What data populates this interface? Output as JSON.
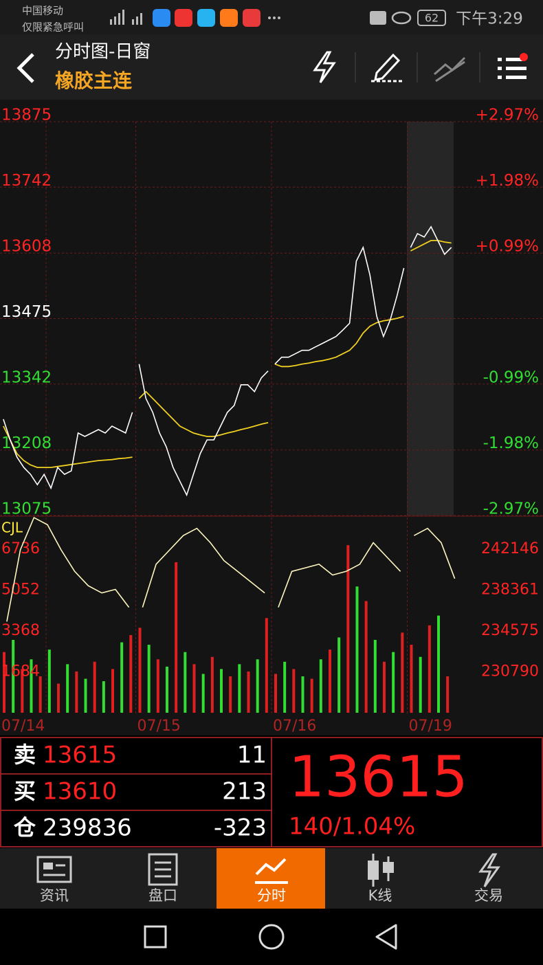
{
  "status_bar": {
    "carrier": "中国移动",
    "carrier_note": "仅限紧急呼叫",
    "battery": "62",
    "time": "下午3:29"
  },
  "header": {
    "title": "分时图-日窗",
    "subtitle": "橡胶主连"
  },
  "chart_data": {
    "type": "line",
    "ylim": [
      13075,
      13875
    ],
    "yticks": [
      13875,
      13742,
      13608,
      13475,
      13342,
      13208,
      13075
    ],
    "y2lim": [
      -2.97,
      2.97
    ],
    "y2ticks": [
      {
        "value": 2.97,
        "label": "+2.97%"
      },
      {
        "value": 1.98,
        "label": "+1.98%"
      },
      {
        "value": 0.99,
        "label": "+0.99%"
      },
      {
        "value": -0.99,
        "label": "-0.99%"
      },
      {
        "value": -1.98,
        "label": "-1.98%"
      },
      {
        "value": -2.97,
        "label": "-2.97%"
      }
    ],
    "indicator_label": "CJL",
    "volume_ylim": [
      0,
      6736
    ],
    "volume_ticks": [
      1684,
      3368,
      5052,
      6736
    ],
    "oi_ylim": [
      230790,
      242146
    ],
    "oi_ticks": [
      230790,
      234575,
      238361,
      242146
    ],
    "days": [
      {
        "label": "07/14",
        "price": [
          13258,
          13216,
          13181,
          13160,
          13146,
          13125,
          13146,
          13118,
          13160,
          13146,
          13153,
          13230,
          13223,
          13230,
          13237,
          13230,
          13244,
          13237,
          13230,
          13272
        ],
        "avg": [
          13244,
          13216,
          13188,
          13174,
          13165,
          13160,
          13160,
          13160,
          13162,
          13164,
          13166,
          13168,
          13170,
          13172,
          13174,
          13175,
          13176,
          13178,
          13179,
          13181
        ],
        "oi": [
          235439,
          242080,
          245069,
          244405,
          242080,
          240089,
          238759,
          238095,
          238427,
          236767
        ],
        "volume": [
          2500,
          3000,
          1800,
          2200,
          1500,
          2600,
          1200,
          2000,
          1700,
          1400,
          2100,
          1300,
          1800,
          2900,
          3200
        ]
      },
      {
        "label": "07/15",
        "price": [
          13370,
          13300,
          13272,
          13230,
          13202,
          13160,
          13132,
          13104,
          13146,
          13188,
          13216,
          13216,
          13244,
          13272,
          13286,
          13328,
          13328,
          13314,
          13342,
          13356
        ],
        "avg": [
          13300,
          13314,
          13300,
          13286,
          13272,
          13258,
          13244,
          13237,
          13230,
          13226,
          13223,
          13223,
          13226,
          13230,
          13233,
          13237,
          13240,
          13244,
          13248,
          13251
        ],
        "oi": [
          236767,
          240751,
          242080,
          243408,
          244073,
          242744,
          241084,
          240089,
          239093,
          238095
        ],
        "volume": [
          3500,
          2800,
          2200,
          1900,
          6200,
          2500,
          2000,
          1600,
          2300,
          1800,
          1500,
          2000,
          1700,
          2200,
          3900
        ]
      },
      {
        "label": "07/16",
        "price": [
          13370,
          13384,
          13384,
          13391,
          13398,
          13398,
          13405,
          13412,
          13419,
          13426,
          13439,
          13453,
          13579,
          13607,
          13551,
          13467,
          13426,
          13460,
          13509,
          13565
        ],
        "avg": [
          13370,
          13365,
          13365,
          13367,
          13370,
          13372,
          13375,
          13377,
          13380,
          13384,
          13391,
          13398,
          13412,
          13433,
          13447,
          13454,
          13458,
          13460,
          13463,
          13467
        ],
        "oi": [
          236767,
          240089,
          240421,
          240751,
          239757,
          240089,
          240751,
          242744,
          241416,
          240089
        ],
        "volume": [
          1600,
          2100,
          1800,
          1500,
          1400,
          2200,
          2600,
          3100,
          6900,
          5200,
          4600,
          3000,
          2100,
          2500,
          3300
        ]
      },
      {
        "label": "07/19",
        "price": [
          13607,
          13635,
          13628,
          13649,
          13621,
          13593,
          13607
        ],
        "avg": [
          13600,
          13607,
          13614,
          13621,
          13621,
          13618,
          13616
        ],
        "oi": [
          243408,
          244073,
          242744,
          239425
        ],
        "volume": [
          2800,
          2300,
          3600,
          4000,
          1500
        ]
      }
    ]
  },
  "quote": {
    "rows": [
      {
        "side": "卖",
        "price": 13615,
        "qty": 11
      },
      {
        "side": "买",
        "price": 13610,
        "qty": 213
      },
      {
        "side": "仓",
        "price": 239836,
        "qty": -323
      }
    ],
    "last": 13615,
    "change": "140/1.04%"
  },
  "tabs": [
    {
      "label": "资讯"
    },
    {
      "label": "盘口"
    },
    {
      "label": "分时"
    },
    {
      "label": "K线"
    },
    {
      "label": "交易"
    }
  ]
}
